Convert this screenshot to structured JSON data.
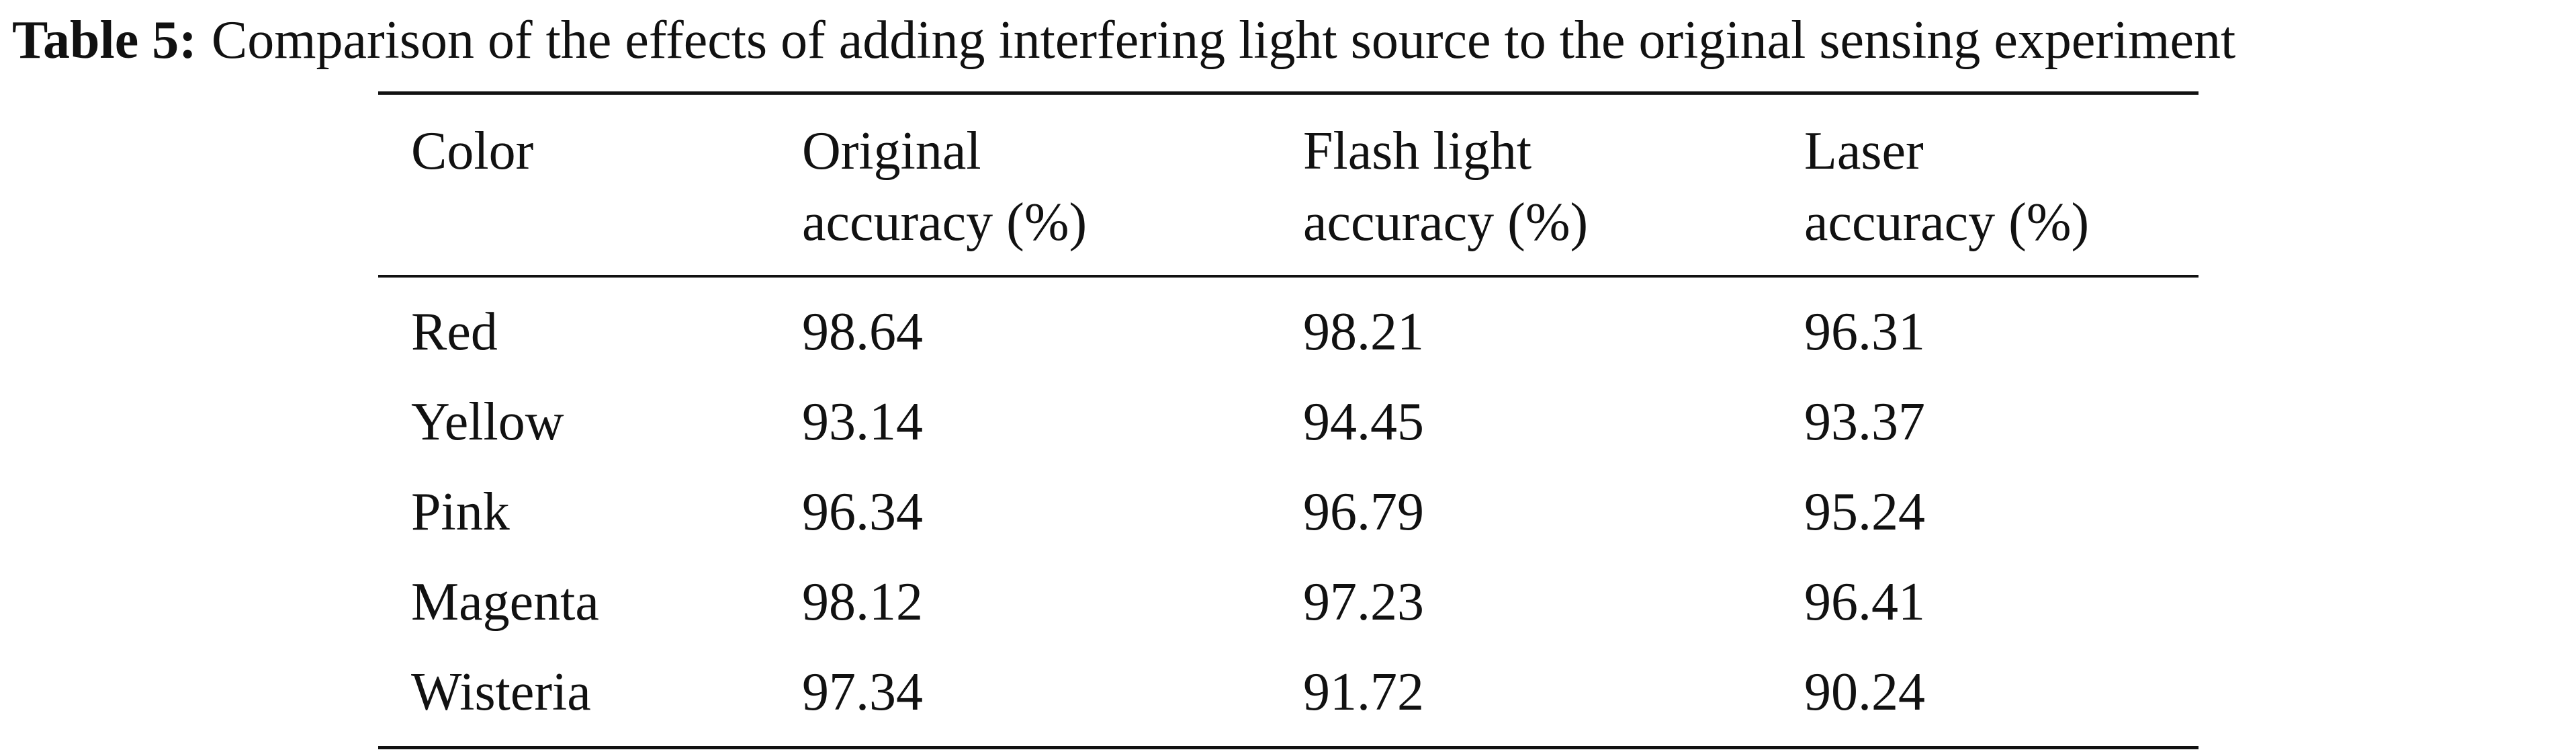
{
  "caption": {
    "label": "Table 5:",
    "text": "Comparison of the effects of adding interfering light source to the original sensing experiment"
  },
  "table": {
    "header": [
      [
        "Color"
      ],
      [
        "Original",
        "accuracy (%)"
      ],
      [
        "Flash light",
        "accuracy (%)"
      ],
      [
        "Laser",
        "accuracy (%)"
      ]
    ],
    "rows": [
      [
        "Red",
        "98.64",
        "98.21",
        "96.31"
      ],
      [
        "Yellow",
        "93.14",
        "94.45",
        "93.37"
      ],
      [
        "Pink",
        "96.34",
        "96.79",
        "95.24"
      ],
      [
        "Magenta",
        "98.12",
        "97.23",
        "96.41"
      ],
      [
        "Wisteria",
        "97.34",
        "91.72",
        "90.24"
      ]
    ]
  }
}
